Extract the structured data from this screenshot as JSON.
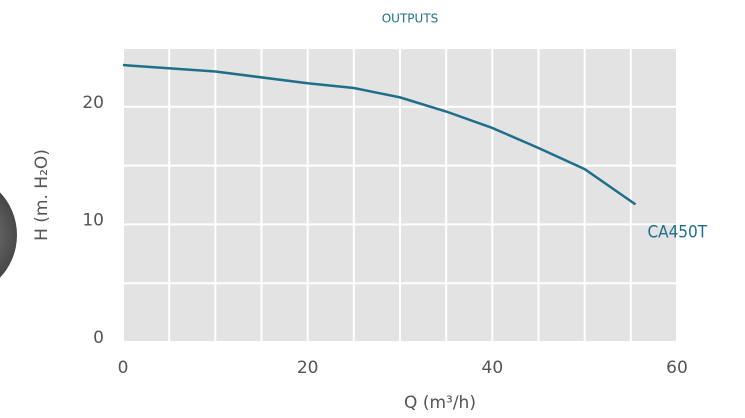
{
  "chart_data": {
    "type": "line",
    "title": "OUTPUTS",
    "x_label": "Q (m³/h)",
    "y_label": "H (m. H₂O)",
    "series": [
      {
        "name": "CA450T",
        "color": "#1f6f8b",
        "x": [
          0,
          10,
          20,
          25,
          30,
          35,
          40,
          45,
          50,
          55.5
        ],
        "values": [
          23.55,
          23.0,
          22.0,
          21.6,
          20.8,
          19.6,
          18.2,
          16.5,
          14.7,
          11.7
        ]
      }
    ],
    "xlim": [
      0,
      60
    ],
    "xticks": [
      0,
      20,
      40,
      60
    ],
    "ylim": [
      0,
      25
    ],
    "yticks": [
      0,
      10,
      20
    ],
    "xgrid": [
      0,
      5,
      10,
      15,
      20,
      25,
      30,
      35,
      40,
      45,
      50,
      55,
      60
    ],
    "ygrid": [
      0,
      5,
      10,
      15,
      20,
      25
    ],
    "grid": true
  }
}
